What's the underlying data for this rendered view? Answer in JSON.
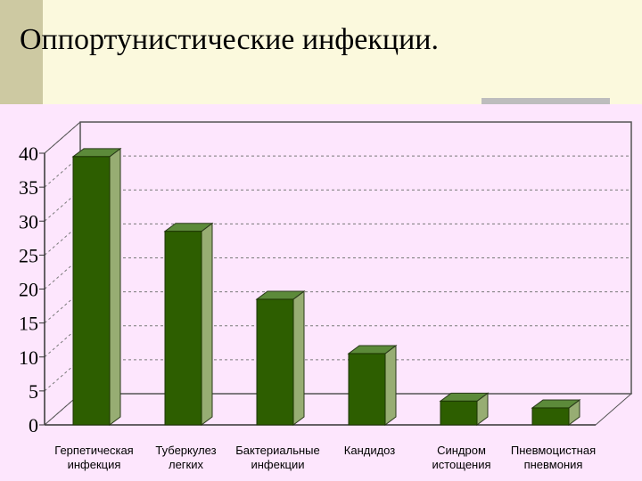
{
  "slide": {
    "title": "Оппортунистические инфекции."
  },
  "colors": {
    "background": "#fbf9dd",
    "plot_background": "#fde6fd",
    "bar_front": "#2d5e00",
    "bar_side": "#97ad73",
    "bar_top": "#5c8a3a"
  },
  "chart_data": {
    "type": "bar",
    "title": "",
    "xlabel": "",
    "ylabel": "",
    "ylim": [
      0,
      40
    ],
    "y_ticks": [
      "0",
      "5",
      "10",
      "15",
      "20",
      "25",
      "30",
      "35",
      "40"
    ],
    "categories": [
      [
        "Герпетическая",
        "инфекция"
      ],
      [
        "Туберкулез",
        "легких"
      ],
      [
        "Бактериальные",
        "инфекции"
      ],
      [
        "Кандидоз"
      ],
      [
        "Синдром",
        "истощения"
      ],
      [
        "Пневмоцистная",
        "пневмония"
      ]
    ],
    "values": [
      39.5,
      28.5,
      18.5,
      10.5,
      3.5,
      2.5
    ],
    "grid": "horizontal dashed",
    "three_d": true
  }
}
